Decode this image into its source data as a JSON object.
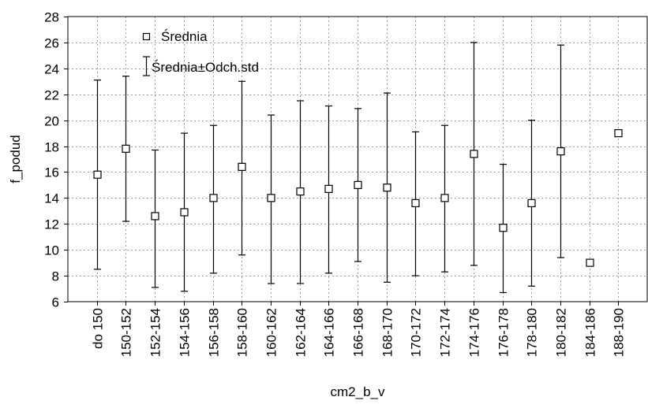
{
  "chart_data": {
    "type": "errorbar",
    "xlabel": "cm2_b_v",
    "ylabel": "f_podud",
    "ylim": [
      6,
      28
    ],
    "yticks": [
      6,
      8,
      10,
      12,
      14,
      16,
      18,
      20,
      22,
      24,
      26,
      28
    ],
    "grid": true,
    "legend_position": "top-left",
    "categories": [
      "do 150",
      "150-152",
      "152-154",
      "154-156",
      "156-158",
      "158-160",
      "160-162",
      "162-164",
      "164-166",
      "166-168",
      "168-170",
      "170-172",
      "172-174",
      "174-176",
      "176-178",
      "178-180",
      "180-182",
      "184-186",
      "188-190"
    ],
    "series": [
      {
        "name": "Średnia",
        "marker": "square",
        "values": [
          15.8,
          17.8,
          12.6,
          12.9,
          14.0,
          16.4,
          14.0,
          14.5,
          14.7,
          15.0,
          14.8,
          13.6,
          14.0,
          17.4,
          11.7,
          13.6,
          17.6,
          9.0,
          19.0
        ]
      },
      {
        "name": "Średnia±Odch.std",
        "marker": "whisker",
        "lower": [
          8.5,
          12.2,
          7.1,
          6.8,
          8.2,
          9.6,
          7.4,
          7.4,
          8.2,
          9.1,
          7.5,
          8.0,
          8.3,
          8.8,
          6.7,
          7.2,
          9.4,
          null,
          null
        ],
        "upper": [
          23.1,
          23.4,
          17.7,
          19.0,
          19.6,
          23.0,
          20.4,
          21.5,
          21.1,
          20.9,
          22.1,
          19.1,
          19.6,
          26.0,
          16.6,
          20.0,
          25.8,
          null,
          null
        ]
      }
    ]
  },
  "colors": {
    "background": "#ffffff",
    "grid": "#9a9a9a",
    "ink": "#000000"
  }
}
